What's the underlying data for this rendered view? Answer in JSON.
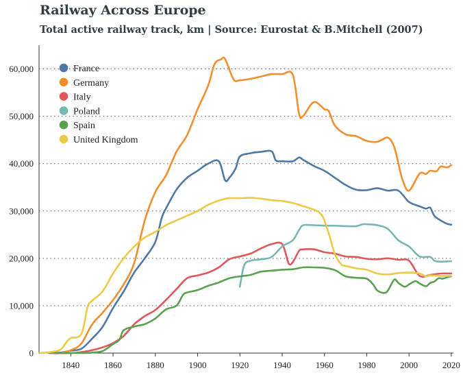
{
  "title": "Railway Across Europe",
  "subtitle": "Total active railway track, km | Source: Eurostat & B.Mitchell (2007)",
  "chart_data": {
    "type": "line",
    "xlim": [
      1825,
      2021
    ],
    "ylim": [
      0,
      65000
    ],
    "x_ticks": [
      1840,
      1860,
      1880,
      1900,
      1920,
      1940,
      1960,
      1980,
      2000,
      2020
    ],
    "y_ticks": [
      0,
      10000,
      20000,
      30000,
      40000,
      50000,
      60000
    ],
    "y_tick_labels": [
      "0",
      "10,000",
      "20,000",
      "30,000",
      "40,000",
      "50,000",
      "60,000"
    ],
    "grid": "horizontal dotted",
    "legend_position": "top-left",
    "series": [
      {
        "name": "France",
        "color": "#4e79a7",
        "points": [
          [
            1830,
            0
          ],
          [
            1835,
            100
          ],
          [
            1840,
            500
          ],
          [
            1845,
            900
          ],
          [
            1850,
            3000
          ],
          [
            1855,
            5500
          ],
          [
            1860,
            9500
          ],
          [
            1865,
            13000
          ],
          [
            1870,
            17000
          ],
          [
            1875,
            20000
          ],
          [
            1880,
            23500
          ],
          [
            1883,
            28500
          ],
          [
            1885,
            30500
          ],
          [
            1890,
            34500
          ],
          [
            1895,
            37000
          ],
          [
            1900,
            38500
          ],
          [
            1905,
            40000
          ],
          [
            1910,
            40500
          ],
          [
            1913,
            36500
          ],
          [
            1915,
            37000
          ],
          [
            1918,
            39000
          ],
          [
            1920,
            41500
          ],
          [
            1925,
            42200
          ],
          [
            1930,
            42500
          ],
          [
            1935,
            42600
          ],
          [
            1937,
            40700
          ],
          [
            1940,
            40500
          ],
          [
            1945,
            40500
          ],
          [
            1948,
            41300
          ],
          [
            1950,
            40800
          ],
          [
            1955,
            39500
          ],
          [
            1960,
            38500
          ],
          [
            1965,
            37000
          ],
          [
            1970,
            35500
          ],
          [
            1975,
            34500
          ],
          [
            1980,
            34400
          ],
          [
            1985,
            34800
          ],
          [
            1990,
            34300
          ],
          [
            1995,
            34300
          ],
          [
            2000,
            31900
          ],
          [
            2005,
            31000
          ],
          [
            2008,
            30500
          ],
          [
            2010,
            30700
          ],
          [
            2012,
            29000
          ],
          [
            2015,
            28000
          ],
          [
            2018,
            27300
          ],
          [
            2020,
            27100
          ]
        ]
      },
      {
        "name": "Germany",
        "color": "#f28e2b",
        "points": [
          [
            1830,
            0
          ],
          [
            1835,
            0
          ],
          [
            1840,
            600
          ],
          [
            1845,
            2000
          ],
          [
            1850,
            6000
          ],
          [
            1855,
            8500
          ],
          [
            1860,
            11200
          ],
          [
            1865,
            14500
          ],
          [
            1870,
            19000
          ],
          [
            1875,
            28000
          ],
          [
            1880,
            34000
          ],
          [
            1885,
            37500
          ],
          [
            1890,
            42500
          ],
          [
            1895,
            46000
          ],
          [
            1900,
            51500
          ],
          [
            1905,
            56500
          ],
          [
            1908,
            61000
          ],
          [
            1911,
            62000
          ],
          [
            1913,
            62100
          ],
          [
            1917,
            57800
          ],
          [
            1920,
            57600
          ],
          [
            1925,
            57900
          ],
          [
            1930,
            58400
          ],
          [
            1935,
            58900
          ],
          [
            1940,
            58900
          ],
          [
            1945,
            58800
          ],
          [
            1948,
            50500
          ],
          [
            1950,
            50100
          ],
          [
            1955,
            53000
          ],
          [
            1960,
            51500
          ],
          [
            1962,
            51100
          ],
          [
            1965,
            48000
          ],
          [
            1970,
            46200
          ],
          [
            1975,
            45800
          ],
          [
            1980,
            44800
          ],
          [
            1985,
            44600
          ],
          [
            1990,
            45500
          ],
          [
            1993,
            43500
          ],
          [
            1995,
            40000
          ],
          [
            1997,
            36500
          ],
          [
            2000,
            34300
          ],
          [
            2005,
            37900
          ],
          [
            2008,
            37800
          ],
          [
            2010,
            38500
          ],
          [
            2013,
            38400
          ],
          [
            2015,
            39400
          ],
          [
            2018,
            39200
          ],
          [
            2020,
            39700
          ]
        ]
      },
      {
        "name": "Italy",
        "color": "#e15759",
        "points": [
          [
            1830,
            0
          ],
          [
            1840,
            0
          ],
          [
            1845,
            200
          ],
          [
            1850,
            600
          ],
          [
            1855,
            1200
          ],
          [
            1860,
            2100
          ],
          [
            1865,
            3600
          ],
          [
            1870,
            6100
          ],
          [
            1875,
            7800
          ],
          [
            1880,
            9100
          ],
          [
            1885,
            11200
          ],
          [
            1890,
            13500
          ],
          [
            1895,
            15800
          ],
          [
            1900,
            16400
          ],
          [
            1905,
            17000
          ],
          [
            1910,
            18100
          ],
          [
            1915,
            19800
          ],
          [
            1920,
            20400
          ],
          [
            1925,
            21000
          ],
          [
            1930,
            22100
          ],
          [
            1935,
            23000
          ],
          [
            1940,
            23000
          ],
          [
            1943,
            19000
          ],
          [
            1945,
            19200
          ],
          [
            1948,
            21600
          ],
          [
            1950,
            21900
          ],
          [
            1955,
            21900
          ],
          [
            1960,
            21300
          ],
          [
            1965,
            21000
          ],
          [
            1970,
            20400
          ],
          [
            1975,
            20300
          ],
          [
            1980,
            19900
          ],
          [
            1985,
            19800
          ],
          [
            1990,
            20000
          ],
          [
            1995,
            19700
          ],
          [
            2000,
            19500
          ],
          [
            2005,
            16300
          ],
          [
            2010,
            16500
          ],
          [
            2015,
            16800
          ],
          [
            2020,
            16800
          ]
        ]
      },
      {
        "name": "Poland",
        "color": "#76b7b2",
        "points": [
          [
            1920,
            14000
          ],
          [
            1922,
            18500
          ],
          [
            1925,
            19500
          ],
          [
            1930,
            19800
          ],
          [
            1935,
            20300
          ],
          [
            1940,
            22500
          ],
          [
            1945,
            23800
          ],
          [
            1948,
            26000
          ],
          [
            1950,
            27000
          ],
          [
            1955,
            27000
          ],
          [
            1960,
            26900
          ],
          [
            1965,
            26900
          ],
          [
            1970,
            26800
          ],
          [
            1975,
            26800
          ],
          [
            1978,
            27200
          ],
          [
            1980,
            27200
          ],
          [
            1985,
            27000
          ],
          [
            1990,
            26200
          ],
          [
            1995,
            23800
          ],
          [
            2000,
            22500
          ],
          [
            2005,
            20400
          ],
          [
            2010,
            20300
          ],
          [
            2012,
            19500
          ],
          [
            2015,
            19300
          ],
          [
            2020,
            19400
          ]
        ]
      },
      {
        "name": "Spain",
        "color": "#59a14f",
        "points": [
          [
            1830,
            0
          ],
          [
            1845,
            0
          ],
          [
            1848,
            30
          ],
          [
            1850,
            100
          ],
          [
            1855,
            400
          ],
          [
            1860,
            1900
          ],
          [
            1863,
            2800
          ],
          [
            1865,
            4800
          ],
          [
            1870,
            5600
          ],
          [
            1875,
            6100
          ],
          [
            1880,
            7300
          ],
          [
            1885,
            9200
          ],
          [
            1890,
            10000
          ],
          [
            1893,
            12200
          ],
          [
            1895,
            12800
          ],
          [
            1900,
            13300
          ],
          [
            1905,
            14200
          ],
          [
            1910,
            14900
          ],
          [
            1915,
            15800
          ],
          [
            1920,
            16200
          ],
          [
            1925,
            16500
          ],
          [
            1930,
            17200
          ],
          [
            1935,
            17400
          ],
          [
            1940,
            17600
          ],
          [
            1945,
            17700
          ],
          [
            1950,
            18100
          ],
          [
            1955,
            18100
          ],
          [
            1960,
            18000
          ],
          [
            1965,
            17500
          ],
          [
            1970,
            16200
          ],
          [
            1975,
            15900
          ],
          [
            1980,
            15700
          ],
          [
            1983,
            14500
          ],
          [
            1985,
            13200
          ],
          [
            1988,
            12700
          ],
          [
            1990,
            13200
          ],
          [
            1993,
            15500
          ],
          [
            1995,
            14800
          ],
          [
            1998,
            14000
          ],
          [
            2000,
            14500
          ],
          [
            2003,
            15200
          ],
          [
            2005,
            14700
          ],
          [
            2008,
            14100
          ],
          [
            2010,
            14800
          ],
          [
            2012,
            15100
          ],
          [
            2014,
            15800
          ],
          [
            2016,
            15700
          ],
          [
            2018,
            16000
          ],
          [
            2020,
            16200
          ]
        ]
      },
      {
        "name": "United Kingdom",
        "color": "#edc948",
        "points": [
          [
            1825,
            0
          ],
          [
            1830,
            200
          ],
          [
            1835,
            700
          ],
          [
            1838,
            2300
          ],
          [
            1840,
            3200
          ],
          [
            1845,
            4000
          ],
          [
            1848,
            9800
          ],
          [
            1850,
            11000
          ],
          [
            1855,
            13000
          ],
          [
            1860,
            16800
          ],
          [
            1865,
            20000
          ],
          [
            1870,
            22500
          ],
          [
            1875,
            24400
          ],
          [
            1880,
            25600
          ],
          [
            1885,
            27000
          ],
          [
            1890,
            28000
          ],
          [
            1895,
            29000
          ],
          [
            1900,
            30000
          ],
          [
            1905,
            31300
          ],
          [
            1910,
            32200
          ],
          [
            1915,
            32700
          ],
          [
            1920,
            32700
          ],
          [
            1925,
            32800
          ],
          [
            1930,
            32600
          ],
          [
            1935,
            32300
          ],
          [
            1940,
            32100
          ],
          [
            1945,
            31700
          ],
          [
            1950,
            31000
          ],
          [
            1955,
            30300
          ],
          [
            1958,
            29500
          ],
          [
            1960,
            28000
          ],
          [
            1963,
            23800
          ],
          [
            1965,
            20800
          ],
          [
            1968,
            18700
          ],
          [
            1970,
            18400
          ],
          [
            1975,
            17900
          ],
          [
            1980,
            17600
          ],
          [
            1985,
            16800
          ],
          [
            1990,
            16600
          ],
          [
            1995,
            16900
          ],
          [
            2000,
            17000
          ],
          [
            2005,
            16800
          ],
          [
            2008,
            16200
          ],
          [
            2010,
            16400
          ],
          [
            2015,
            16300
          ],
          [
            2020,
            16300
          ]
        ]
      }
    ]
  }
}
